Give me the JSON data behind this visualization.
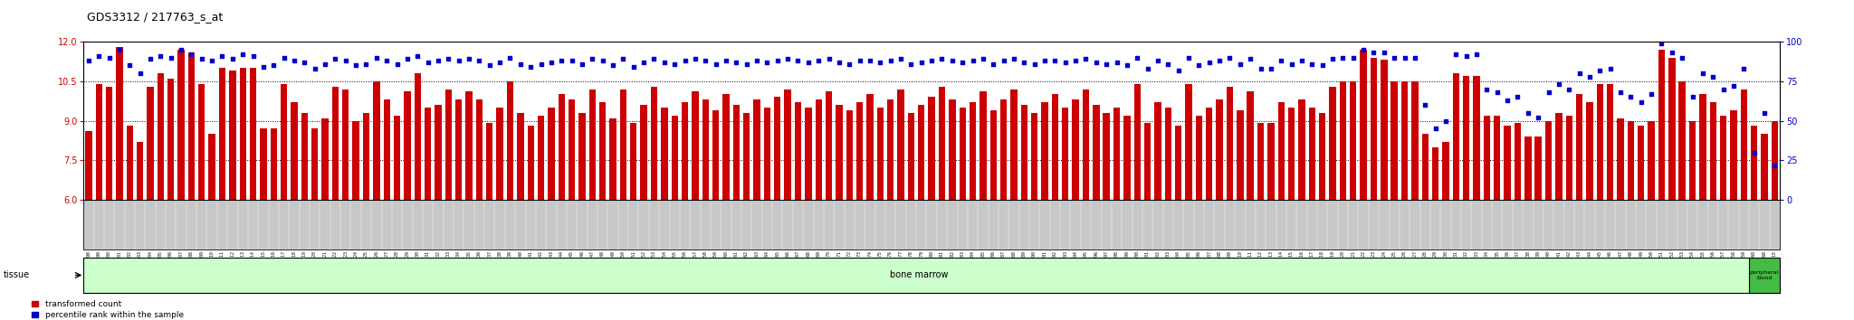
{
  "title": "GDS3312 / 217763_s_at",
  "ylim_left": [
    6,
    12
  ],
  "ylim_right": [
    0,
    100
  ],
  "yticks_left": [
    6,
    7.5,
    9,
    10.5,
    12
  ],
  "yticks_right": [
    0,
    25,
    50,
    75,
    100
  ],
  "bar_color": "#cc0000",
  "dot_color": "#0000cc",
  "bg_color": "#ffffff",
  "label_area_color": "#c8c8c8",
  "tissue_bm_color": "#ccffcc",
  "tissue_pb_color": "#44bb44",
  "samples": [
    "GSM311598",
    "GSM311599",
    "GSM311600",
    "GSM311601",
    "GSM311602",
    "GSM311603",
    "GSM311604",
    "GSM311605",
    "GSM311606",
    "GSM311607",
    "GSM311608",
    "GSM311609",
    "GSM311610",
    "GSM311611",
    "GSM311612",
    "GSM311613",
    "GSM311614",
    "GSM311615",
    "GSM311616",
    "GSM311617",
    "GSM311618",
    "GSM311619",
    "GSM311620",
    "GSM311621",
    "GSM311622",
    "GSM311623",
    "GSM311624",
    "GSM311625",
    "GSM311626",
    "GSM311627",
    "GSM311628",
    "GSM311629",
    "GSM311630",
    "GSM311631",
    "GSM311632",
    "GSM311633",
    "GSM311634",
    "GSM311635",
    "GSM311636",
    "GSM311637",
    "GSM311638",
    "GSM311639",
    "GSM311640",
    "GSM311641",
    "GSM311642",
    "GSM311643",
    "GSM311644",
    "GSM311645",
    "GSM311646",
    "GSM311647",
    "GSM311648",
    "GSM311649",
    "GSM311650",
    "GSM311651",
    "GSM311652",
    "GSM311653",
    "GSM311654",
    "GSM311655",
    "GSM311656",
    "GSM311657",
    "GSM311658",
    "GSM311659",
    "GSM311660",
    "GSM311661",
    "GSM311662",
    "GSM311663",
    "GSM311664",
    "GSM311665",
    "GSM311666",
    "GSM311667",
    "GSM311668",
    "GSM311669",
    "GSM311670",
    "GSM311671",
    "GSM311672",
    "GSM311673",
    "GSM311674",
    "GSM311675",
    "GSM311676",
    "GSM311677",
    "GSM311678",
    "GSM311679",
    "GSM311680",
    "GSM311681",
    "GSM311682",
    "GSM311683",
    "GSM311684",
    "GSM311685",
    "GSM311686",
    "GSM311687",
    "GSM311688",
    "GSM311689",
    "GSM311690",
    "GSM311691",
    "GSM311692",
    "GSM311693",
    "GSM311694",
    "GSM311695",
    "GSM311696",
    "GSM311697",
    "GSM311698",
    "GSM311699",
    "GSM311700",
    "GSM311701",
    "GSM311702",
    "GSM311703",
    "GSM311704",
    "GSM311705",
    "GSM311706",
    "GSM311707",
    "GSM311708",
    "GSM311709",
    "GSM311710",
    "GSM311711",
    "GSM311712",
    "GSM311713",
    "GSM311714",
    "GSM311715",
    "GSM311716",
    "GSM311717",
    "GSM311718",
    "GSM311719",
    "GSM311720",
    "GSM311721",
    "GSM311722",
    "GSM311723",
    "GSM311724",
    "GSM311725",
    "GSM311726",
    "GSM311727",
    "GSM311728",
    "GSM311729",
    "GSM311730",
    "GSM311731",
    "GSM311732",
    "GSM311733",
    "GSM311734",
    "GSM311735",
    "GSM311736",
    "GSM311737",
    "GSM311738",
    "GSM311739",
    "GSM311740",
    "GSM311741",
    "GSM311742",
    "GSM311743",
    "GSM311744",
    "GSM311745",
    "GSM311746",
    "GSM311747",
    "GSM311748",
    "GSM311749",
    "GSM311750",
    "GSM311751",
    "GSM311752",
    "GSM311753",
    "GSM311754",
    "GSM311755",
    "GSM311756",
    "GSM311757",
    "GSM311758",
    "GSM311759",
    "GSM311760",
    "GSM311668",
    "GSM311715"
  ],
  "bar_values": [
    8.6,
    10.4,
    10.3,
    11.8,
    8.8,
    8.2,
    10.3,
    10.8,
    10.6,
    11.7,
    11.6,
    10.4,
    8.5,
    11.0,
    10.9,
    11.0,
    11.0,
    8.7,
    8.7,
    10.4,
    9.7,
    9.3,
    8.7,
    9.1,
    10.3,
    10.2,
    9.0,
    9.3,
    10.5,
    9.8,
    9.2,
    10.1,
    10.8,
    9.5,
    9.6,
    10.2,
    9.8,
    10.1,
    9.8,
    8.9,
    9.5,
    10.5,
    9.3,
    8.8,
    9.2,
    9.5,
    10.0,
    9.8,
    9.3,
    10.2,
    9.7,
    9.1,
    10.2,
    8.9,
    9.6,
    10.3,
    9.5,
    9.2,
    9.7,
    10.1,
    9.8,
    9.4,
    10.0,
    9.6,
    9.3,
    9.8,
    9.5,
    9.9,
    10.2,
    9.7,
    9.5,
    9.8,
    10.1,
    9.6,
    9.4,
    9.7,
    10.0,
    9.5,
    9.8,
    10.2,
    9.3,
    9.6,
    9.9,
    10.3,
    9.8,
    9.5,
    9.7,
    10.1,
    9.4,
    9.8,
    10.2,
    9.6,
    9.3,
    9.7,
    10.0,
    9.5,
    9.8,
    10.2,
    9.6,
    9.3,
    9.5,
    9.2,
    10.4,
    8.9,
    9.7,
    9.5,
    8.8,
    10.4,
    9.2,
    9.5,
    9.8,
    10.3,
    9.4,
    10.1,
    8.9,
    8.9,
    9.7,
    9.5,
    9.8,
    9.5,
    9.3,
    10.3,
    10.5,
    10.5,
    11.7,
    11.4,
    11.3,
    10.5,
    10.5,
    10.5,
    8.5,
    8.0,
    8.2,
    10.8,
    10.7,
    10.7,
    9.2,
    9.2,
    8.8,
    8.9,
    8.4,
    8.4,
    9.0,
    9.3,
    9.2,
    10.0,
    9.7,
    10.4,
    10.4,
    9.1,
    9.0,
    8.8,
    9.0,
    11.7,
    11.4,
    10.5,
    9.0,
    10.0,
    9.7,
    9.2,
    9.4,
    10.2,
    8.8,
    8.5,
    9.0
  ],
  "dot_values": [
    88,
    91,
    90,
    95,
    85,
    80,
    89,
    91,
    90,
    95,
    92,
    89,
    88,
    91,
    89,
    92,
    91,
    84,
    85,
    90,
    88,
    87,
    83,
    86,
    89,
    88,
    85,
    86,
    90,
    88,
    86,
    89,
    91,
    87,
    88,
    89,
    88,
    89,
    88,
    85,
    87,
    90,
    86,
    84,
    86,
    87,
    88,
    88,
    86,
    89,
    88,
    85,
    89,
    84,
    87,
    89,
    87,
    86,
    88,
    89,
    88,
    86,
    88,
    87,
    86,
    88,
    87,
    88,
    89,
    88,
    87,
    88,
    89,
    87,
    86,
    88,
    88,
    87,
    88,
    89,
    86,
    87,
    88,
    89,
    88,
    87,
    88,
    89,
    86,
    88,
    89,
    87,
    86,
    88,
    88,
    87,
    88,
    89,
    87,
    86,
    87,
    85,
    90,
    83,
    88,
    86,
    82,
    90,
    85,
    87,
    88,
    90,
    86,
    89,
    83,
    83,
    88,
    86,
    88,
    86,
    85,
    89,
    90,
    90,
    95,
    93,
    93,
    90,
    90,
    90,
    60,
    45,
    50,
    92,
    91,
    92,
    70,
    68,
    63,
    65,
    55,
    52,
    68,
    73,
    70,
    80,
    78,
    82,
    83,
    68,
    65,
    62,
    67,
    99,
    93,
    90,
    65,
    80,
    78,
    70,
    72,
    83,
    30,
    55,
    22
  ],
  "n_bone_marrow": 162,
  "tissue_label": "tissue",
  "bm_label": "bone marrow",
  "pb_label": "peripheral\nblood",
  "legend_items": [
    "transformed count",
    "percentile rank within the sample"
  ]
}
